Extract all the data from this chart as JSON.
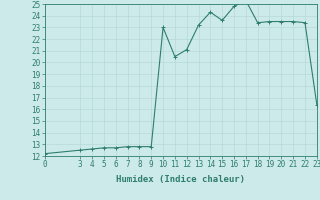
{
  "xlabel": "Humidex (Indice chaleur)",
  "x_values": [
    0,
    3,
    4,
    5,
    6,
    7,
    8,
    9,
    10,
    11,
    12,
    13,
    14,
    15,
    16,
    17,
    18,
    19,
    20,
    21,
    22,
    23
  ],
  "y_values": [
    12.2,
    12.5,
    12.6,
    12.7,
    12.7,
    12.8,
    12.8,
    12.8,
    23.0,
    20.5,
    21.1,
    23.2,
    24.3,
    23.6,
    24.8,
    25.3,
    23.4,
    23.5,
    23.5,
    23.5,
    23.4,
    16.4
  ],
  "line_color": "#2e7d6e",
  "marker": "+",
  "bg_color": "#cdeaea",
  "grid_color": "#b8d8d8",
  "tick_color": "#2e7d6e",
  "label_color": "#2e7d6e",
  "xlim": [
    0,
    23
  ],
  "ylim": [
    12,
    25
  ],
  "yticks": [
    12,
    13,
    14,
    15,
    16,
    17,
    18,
    19,
    20,
    21,
    22,
    23,
    24,
    25
  ],
  "xticks": [
    0,
    3,
    4,
    5,
    6,
    7,
    8,
    9,
    10,
    11,
    12,
    13,
    14,
    15,
    16,
    17,
    18,
    19,
    20,
    21,
    22,
    23
  ],
  "tick_fontsize": 5.5,
  "xlabel_fontsize": 6.5,
  "linewidth": 0.8,
  "markersize": 3,
  "markeredgewidth": 0.7
}
